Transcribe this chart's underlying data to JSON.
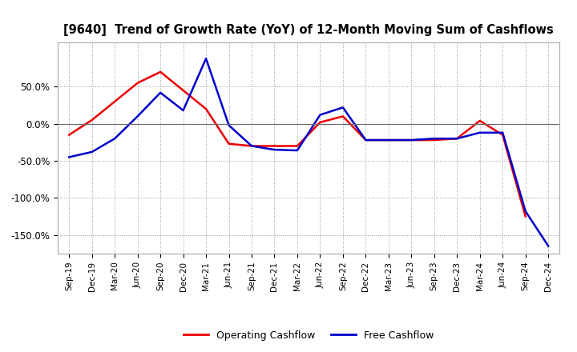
{
  "title": "[9640]  Trend of Growth Rate (YoY) of 12-Month Moving Sum of Cashflows",
  "x_labels": [
    "Sep-19",
    "Dec-19",
    "Mar-20",
    "Jun-20",
    "Sep-20",
    "Dec-20",
    "Mar-21",
    "Jun-21",
    "Sep-21",
    "Dec-21",
    "Mar-22",
    "Jun-22",
    "Sep-22",
    "Dec-22",
    "Mar-23",
    "Jun-23",
    "Sep-23",
    "Dec-23",
    "Mar-24",
    "Jun-24",
    "Sep-24",
    "Dec-24"
  ],
  "operating_cashflow": [
    -15,
    5,
    30,
    55,
    70,
    45,
    20,
    -27,
    -30,
    -30,
    -30,
    2,
    10,
    -22,
    -22,
    -22,
    -22,
    -20,
    4,
    -15,
    -125,
    null
  ],
  "free_cashflow": [
    -45,
    -38,
    -20,
    10,
    42,
    18,
    88,
    -2,
    -30,
    -35,
    -36,
    12,
    22,
    -22,
    -22,
    -22,
    -20,
    -20,
    -12,
    -12,
    -118,
    -165
  ],
  "ylim": [
    -175,
    110
  ],
  "yticks": [
    50.0,
    0.0,
    -50.0,
    -100.0,
    -150.0
  ],
  "operating_color": "#ee0000",
  "free_color": "#0000cc",
  "background_color": "#ffffff",
  "grid_color": "#999999",
  "legend_labels": [
    "Operating Cashflow",
    "Free Cashflow"
  ]
}
